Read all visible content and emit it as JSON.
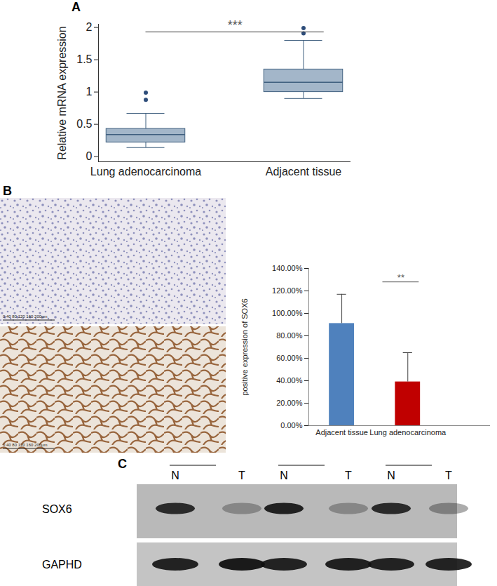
{
  "chart_data": [
    {
      "panel": "A",
      "type": "box",
      "ylabel": "Relative mRNA expression",
      "categories": [
        "Lung adenocarcinoma",
        "Adjacent tissue"
      ],
      "boxes": [
        {
          "whisker_low": 0.14,
          "q1": 0.22,
          "median": 0.34,
          "q3": 0.43,
          "whisker_high": 0.67,
          "outliers": [
            0.88,
            0.99
          ]
        },
        {
          "whisker_low": 0.9,
          "q1": 1.0,
          "median": 1.15,
          "q3": 1.35,
          "whisker_high": 1.8,
          "outliers": [
            1.91,
            1.99
          ]
        }
      ],
      "color": "#a3b6c9",
      "ylim": [
        -0.08,
        2.05
      ],
      "yticks": [
        0,
        0.5,
        1,
        1.5,
        2
      ],
      "annotations": [
        {
          "label": "***",
          "x": [
            0,
            1.13
          ],
          "y": 1.93
        }
      ]
    },
    {
      "panel": "B",
      "type": "bar",
      "ylabel": "positive expression of SOX6",
      "categories": [
        "Adjacent tissue",
        "Lung adenocarcinoma"
      ],
      "values": [
        91,
        39
      ],
      "errors": [
        26,
        26
      ],
      "colors": [
        "#4f81bd",
        "#c00000"
      ],
      "ylim": [
        0,
        140
      ],
      "yticks": [
        {
          "value": 0,
          "label": "0.00%"
        },
        {
          "value": 20,
          "label": "20.00%"
        },
        {
          "value": 40,
          "label": "40.00%"
        },
        {
          "value": 60,
          "label": "60.00%"
        },
        {
          "value": 80,
          "label": "80.00%"
        },
        {
          "value": 100,
          "label": "100.00%"
        },
        {
          "value": 120,
          "label": "120.00%"
        },
        {
          "value": 140,
          "label": "140.00%"
        }
      ],
      "annotations": [
        {
          "label": "**",
          "x": [
            0.62,
            1.17
          ],
          "y": 128
        }
      ]
    }
  ],
  "micrographs": {
    "panel": "B",
    "images": [
      {
        "scale_bar": "0   40   80  120  160  200μm"
      },
      {
        "scale_bar": "0   40   80  120  160  200μm"
      }
    ]
  },
  "blot": {
    "panel": "C",
    "lanes": [
      "N",
      "T",
      "N",
      "T",
      "N",
      "T"
    ],
    "bands": [
      {
        "name": "SOX6",
        "intensity": [
          0.85,
          0.3,
          0.9,
          0.3,
          0.85,
          0.35
        ]
      },
      {
        "name": "GAPHD",
        "intensity": [
          0.9,
          0.95,
          0.9,
          0.92,
          0.9,
          0.9
        ]
      }
    ]
  }
}
